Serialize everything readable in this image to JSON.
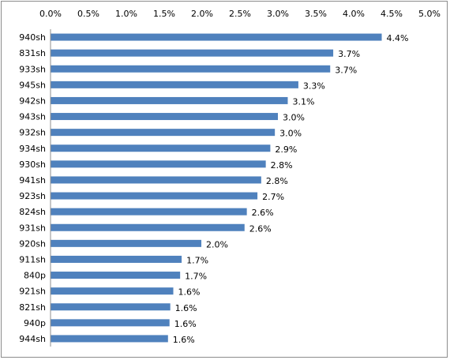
{
  "chart_data": {
    "type": "bar",
    "orientation": "horizontal",
    "title": "",
    "xlabel": "",
    "ylabel": "",
    "xlim": [
      0,
      5.0
    ],
    "x_ticks": [
      "0.0%",
      "0.5%",
      "1.0%",
      "1.5%",
      "2.0%",
      "2.5%",
      "3.0%",
      "3.5%",
      "4.0%",
      "4.5%",
      "5.0%"
    ],
    "x_axis_position": "top",
    "grid": false,
    "legend": "none",
    "bar_color": "#4f81bd",
    "categories": [
      "940sh",
      "831sh",
      "933sh",
      "945sh",
      "942sh",
      "943sh",
      "932sh",
      "934sh",
      "930sh",
      "941sh",
      "923sh",
      "824sh",
      "931sh",
      "920sh",
      "911sh",
      "840p",
      "921sh",
      "821sh",
      "940p",
      "944sh"
    ],
    "values": [
      4.37,
      3.73,
      3.69,
      3.27,
      3.13,
      3.0,
      2.96,
      2.9,
      2.84,
      2.78,
      2.73,
      2.59,
      2.56,
      1.99,
      1.73,
      1.71,
      1.62,
      1.58,
      1.57,
      1.55
    ],
    "data_labels": [
      "4.4%",
      "3.7%",
      "3.7%",
      "3.3%",
      "3.1%",
      "3.0%",
      "3.0%",
      "2.9%",
      "2.8%",
      "2.8%",
      "2.7%",
      "2.6%",
      "2.6%",
      "2.0%",
      "1.7%",
      "1.7%",
      "1.6%",
      "1.6%",
      "1.6%",
      "1.6%"
    ]
  }
}
